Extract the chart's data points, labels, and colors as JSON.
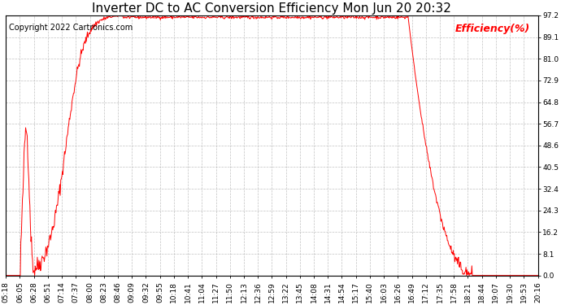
{
  "title": "Inverter DC to AC Conversion Efficiency Mon Jun 20 20:32",
  "copyright": "Copyright 2022 Cartronics.com",
  "legend_label": "Efficiency(%)",
  "line_color": "#ff0000",
  "background_color": "#ffffff",
  "grid_color": "#bbbbbb",
  "yticks": [
    0.0,
    8.1,
    16.2,
    24.3,
    32.4,
    40.5,
    48.6,
    56.7,
    64.8,
    72.9,
    81.0,
    89.1,
    97.2
  ],
  "ymin": 0.0,
  "ymax": 97.2,
  "x_labels": [
    "05:18",
    "06:05",
    "06:28",
    "06:51",
    "07:14",
    "07:37",
    "08:00",
    "08:23",
    "08:46",
    "09:09",
    "09:32",
    "09:55",
    "10:18",
    "10:41",
    "11:04",
    "11:27",
    "11:50",
    "12:13",
    "12:36",
    "12:59",
    "13:22",
    "13:45",
    "14:08",
    "14:31",
    "14:54",
    "15:17",
    "15:40",
    "16:03",
    "16:26",
    "16:49",
    "17:12",
    "17:35",
    "17:58",
    "18:21",
    "18:44",
    "19:07",
    "19:30",
    "19:53",
    "20:16"
  ],
  "title_fontsize": 11,
  "copyright_fontsize": 7,
  "legend_fontsize": 9,
  "tick_fontsize": 6.5
}
